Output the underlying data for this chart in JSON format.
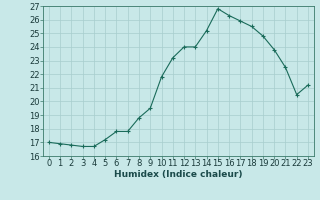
{
  "x": [
    0,
    1,
    2,
    3,
    4,
    5,
    6,
    7,
    8,
    9,
    10,
    11,
    12,
    13,
    14,
    15,
    16,
    17,
    18,
    19,
    20,
    21,
    22,
    23
  ],
  "y": [
    17.0,
    16.9,
    16.8,
    16.7,
    16.7,
    17.2,
    17.8,
    17.8,
    18.8,
    19.5,
    21.8,
    23.2,
    24.0,
    24.0,
    25.2,
    26.8,
    26.3,
    25.9,
    25.5,
    24.8,
    23.8,
    22.5,
    20.5,
    21.2
  ],
  "line_color": "#1a6b5a",
  "marker_color": "#1a6b5a",
  "bg_color": "#c8e8e8",
  "grid_major_color": "#a8cece",
  "grid_minor_color": "#bcdcdc",
  "xlabel": "Humidex (Indice chaleur)",
  "xlabel_fontsize": 6.5,
  "tick_fontsize": 6.0,
  "ylim": [
    16,
    27
  ],
  "yticks": [
    16,
    17,
    18,
    19,
    20,
    21,
    22,
    23,
    24,
    25,
    26,
    27
  ],
  "xticks": [
    0,
    1,
    2,
    3,
    4,
    5,
    6,
    7,
    8,
    9,
    10,
    11,
    12,
    13,
    14,
    15,
    16,
    17,
    18,
    19,
    20,
    21,
    22,
    23
  ]
}
